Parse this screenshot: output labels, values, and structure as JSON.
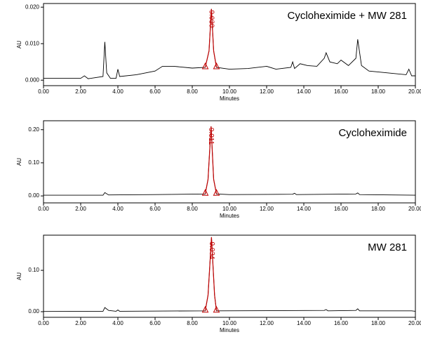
{
  "chart_data": [
    {
      "type": "line",
      "title": "Cycloheximide + MW 281",
      "x_label": "Minutes",
      "y_label": "AU",
      "xlim": [
        0,
        20
      ],
      "ylim": [
        -0.0015,
        0.021
      ],
      "xticks": [
        {
          "value": 0,
          "label": "0.00"
        },
        {
          "value": 2,
          "label": "2.00"
        },
        {
          "value": 4,
          "label": "4.00"
        },
        {
          "value": 6,
          "label": "6.00"
        },
        {
          "value": 8,
          "label": "8.00"
        },
        {
          "value": 10,
          "label": "10.00"
        },
        {
          "value": 12,
          "label": "12.00"
        },
        {
          "value": 14,
          "label": "14.00"
        },
        {
          "value": 16,
          "label": "16.00"
        },
        {
          "value": 18,
          "label": "18.00"
        },
        {
          "value": 20,
          "label": "20.00"
        }
      ],
      "yticks": [
        {
          "value": 0,
          "label": "0.000"
        },
        {
          "value": 0.01,
          "label": "0.010"
        },
        {
          "value": 0.02,
          "label": "0.020"
        }
      ],
      "peak_label": {
        "value": 9.03,
        "label": "9.030"
      },
      "x": [
        0,
        2,
        2.2,
        2.4,
        3.2,
        3.3,
        3.4,
        3.6,
        3.9,
        4,
        4.1,
        5,
        6,
        6.4,
        7,
        8,
        8.7,
        8.9,
        9.03,
        9.15,
        9.3,
        10,
        11,
        12,
        12.5,
        13.3,
        13.4,
        13.5,
        13.8,
        14.2,
        14.7,
        15.1,
        15.2,
        15.4,
        15.8,
        16,
        16.4,
        16.8,
        16.9,
        17.1,
        17.5,
        18.5,
        19.5,
        19.65,
        19.8,
        20
      ],
      "series": [
        {
          "color": "#000000",
          "values": [
            0.0005,
            0.0005,
            0.0012,
            0.0004,
            0.001,
            0.0105,
            0.002,
            0.0005,
            0.0005,
            0.003,
            0.001,
            0.0015,
            0.0025,
            0.0038,
            0.0038,
            0.0033,
            0.0035,
            0.008,
            0.0195,
            0.008,
            0.0035,
            0.003,
            0.0032,
            0.0038,
            0.003,
            0.0035,
            0.005,
            0.0032,
            0.0045,
            0.004,
            0.0038,
            0.006,
            0.0075,
            0.005,
            0.0045,
            0.0055,
            0.004,
            0.006,
            0.0112,
            0.004,
            0.0025,
            0.002,
            0.0015,
            0.003,
            0.0012,
            0.0012
          ]
        },
        {
          "color": "#c00000",
          "values": [
            null,
            null,
            null,
            null,
            null,
            null,
            null,
            null,
            null,
            null,
            null,
            null,
            null,
            null,
            null,
            null,
            0.0035,
            0.008,
            0.0195,
            0.008,
            0.0035,
            null,
            null,
            null,
            null,
            null,
            null,
            null,
            null,
            null,
            null,
            null,
            null,
            null,
            null,
            null,
            null,
            null,
            null,
            null,
            null,
            null,
            null,
            null,
            null,
            null
          ]
        }
      ]
    },
    {
      "type": "line",
      "title": "Cycloheximide",
      "x_label": "Minutes",
      "y_label": "AU",
      "xlim": [
        0,
        20
      ],
      "ylim": [
        -0.021,
        0.227
      ],
      "xticks": [
        {
          "value": 0,
          "label": "0.00"
        },
        {
          "value": 2,
          "label": "2.00"
        },
        {
          "value": 4,
          "label": "4.00"
        },
        {
          "value": 6,
          "label": "6.00"
        },
        {
          "value": 8,
          "label": "8.00"
        },
        {
          "value": 10,
          "label": "10.00"
        },
        {
          "value": 12,
          "label": "12.00"
        },
        {
          "value": 14,
          "label": "14.00"
        },
        {
          "value": 16,
          "label": "16.00"
        },
        {
          "value": 18,
          "label": "18.00"
        },
        {
          "value": 20,
          "label": "20.00"
        }
      ],
      "yticks": [
        {
          "value": 0,
          "label": "0.00"
        },
        {
          "value": 0.1,
          "label": "0.10"
        },
        {
          "value": 0.2,
          "label": "0.20"
        }
      ],
      "peak_label": {
        "value": 9.011,
        "label": "9.011"
      },
      "x": [
        0,
        3.2,
        3.3,
        3.5,
        6,
        8.7,
        8.85,
        9.011,
        9.15,
        9.3,
        10,
        13.4,
        13.5,
        13.6,
        16.8,
        16.9,
        17,
        20
      ],
      "series": [
        {
          "color": "#000000",
          "values": [
            0.002,
            0.002,
            0.01,
            0.003,
            0.004,
            0.006,
            0.05,
            0.21,
            0.05,
            0.006,
            0.004,
            0.005,
            0.008,
            0.004,
            0.006,
            0.009,
            0.004,
            0.002
          ]
        },
        {
          "color": "#c00000",
          "values": [
            null,
            null,
            null,
            null,
            null,
            0.006,
            0.05,
            0.21,
            0.05,
            0.006,
            null,
            null,
            null,
            null,
            null,
            null,
            null,
            null
          ]
        }
      ]
    },
    {
      "type": "line",
      "title": "MW 281",
      "x_label": "Minutes",
      "y_label": "AU",
      "xlim": [
        0,
        20
      ],
      "ylim": [
        -0.0136,
        0.185
      ],
      "xticks": [
        {
          "value": 0,
          "label": "0.00"
        },
        {
          "value": 2,
          "label": "2.00"
        },
        {
          "value": 4,
          "label": "4.00"
        },
        {
          "value": 6,
          "label": "6.00"
        },
        {
          "value": 8,
          "label": "8.00"
        },
        {
          "value": 10,
          "label": "10.00"
        },
        {
          "value": 12,
          "label": "12.00"
        },
        {
          "value": 14,
          "label": "14.00"
        },
        {
          "value": 16,
          "label": "16.00"
        },
        {
          "value": 18,
          "label": "18.00"
        },
        {
          "value": 20,
          "label": "20.00"
        }
      ],
      "yticks": [
        {
          "value": 0,
          "label": "0.00"
        },
        {
          "value": 0.1,
          "label": "0.10"
        }
      ],
      "peak_label": {
        "value": 9.034,
        "label": "9.034"
      },
      "x": [
        0,
        3.2,
        3.3,
        3.5,
        3.9,
        4,
        4.1,
        8.7,
        8.85,
        9.034,
        9.2,
        9.3,
        15.1,
        15.2,
        15.3,
        16.8,
        16.9,
        17,
        19.8,
        20
      ],
      "series": [
        {
          "color": "#000000",
          "values": [
            0.0005,
            0.001,
            0.01,
            0.003,
            0.001,
            0.004,
            0.001,
            0.002,
            0.04,
            0.18,
            0.04,
            0.002,
            0.003,
            0.005,
            0.002,
            0.003,
            0.007,
            0.002,
            0.002,
            0.001
          ]
        },
        {
          "color": "#c00000",
          "values": [
            null,
            null,
            null,
            null,
            null,
            null,
            null,
            0.002,
            0.04,
            0.18,
            0.04,
            0.002,
            null,
            null,
            null,
            null,
            null,
            null,
            null,
            null
          ]
        }
      ]
    }
  ]
}
